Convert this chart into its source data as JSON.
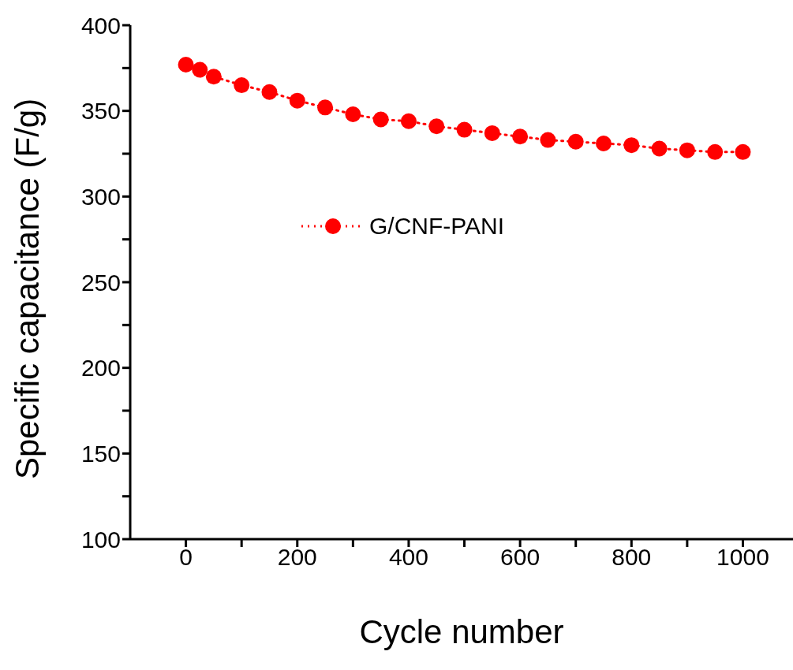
{
  "chart_data": {
    "type": "line",
    "xlabel": "Cycle number",
    "ylabel": "Specific capacitance (F/g)",
    "x": [
      0,
      25,
      50,
      100,
      150,
      200,
      250,
      300,
      350,
      400,
      450,
      500,
      550,
      600,
      650,
      700,
      750,
      800,
      850,
      900,
      950,
      1000
    ],
    "series": [
      {
        "name": "G/CNF-PANI",
        "color": "#ff0000",
        "values": [
          377,
          374,
          370,
          365,
          361,
          356,
          352,
          348,
          345,
          344,
          341,
          339,
          337,
          335,
          333,
          332,
          331,
          330,
          328,
          327,
          326,
          326
        ]
      }
    ],
    "xlim": [
      -100,
      1090
    ],
    "ylim": [
      100,
      400
    ],
    "xticks": [
      0,
      {
        "value": 100,
        "label": null
      },
      200,
      {
        "value": 300,
        "label": null
      },
      400,
      {
        "value": 500,
        "label": null
      },
      600,
      {
        "value": 700,
        "label": null
      },
      800,
      {
        "value": 900,
        "label": null
      },
      1000
    ],
    "yticks": [
      100,
      {
        "value": 125,
        "label": null
      },
      150,
      {
        "value": 175,
        "label": null
      },
      200,
      {
        "value": 225,
        "label": null
      },
      250,
      {
        "value": 275,
        "label": null
      },
      300,
      {
        "value": 325,
        "label": null
      },
      350,
      {
        "value": 375,
        "label": null
      },
      400
    ],
    "marker": "circle",
    "line_style": "dotted",
    "legend": "top left",
    "grid": false
  }
}
